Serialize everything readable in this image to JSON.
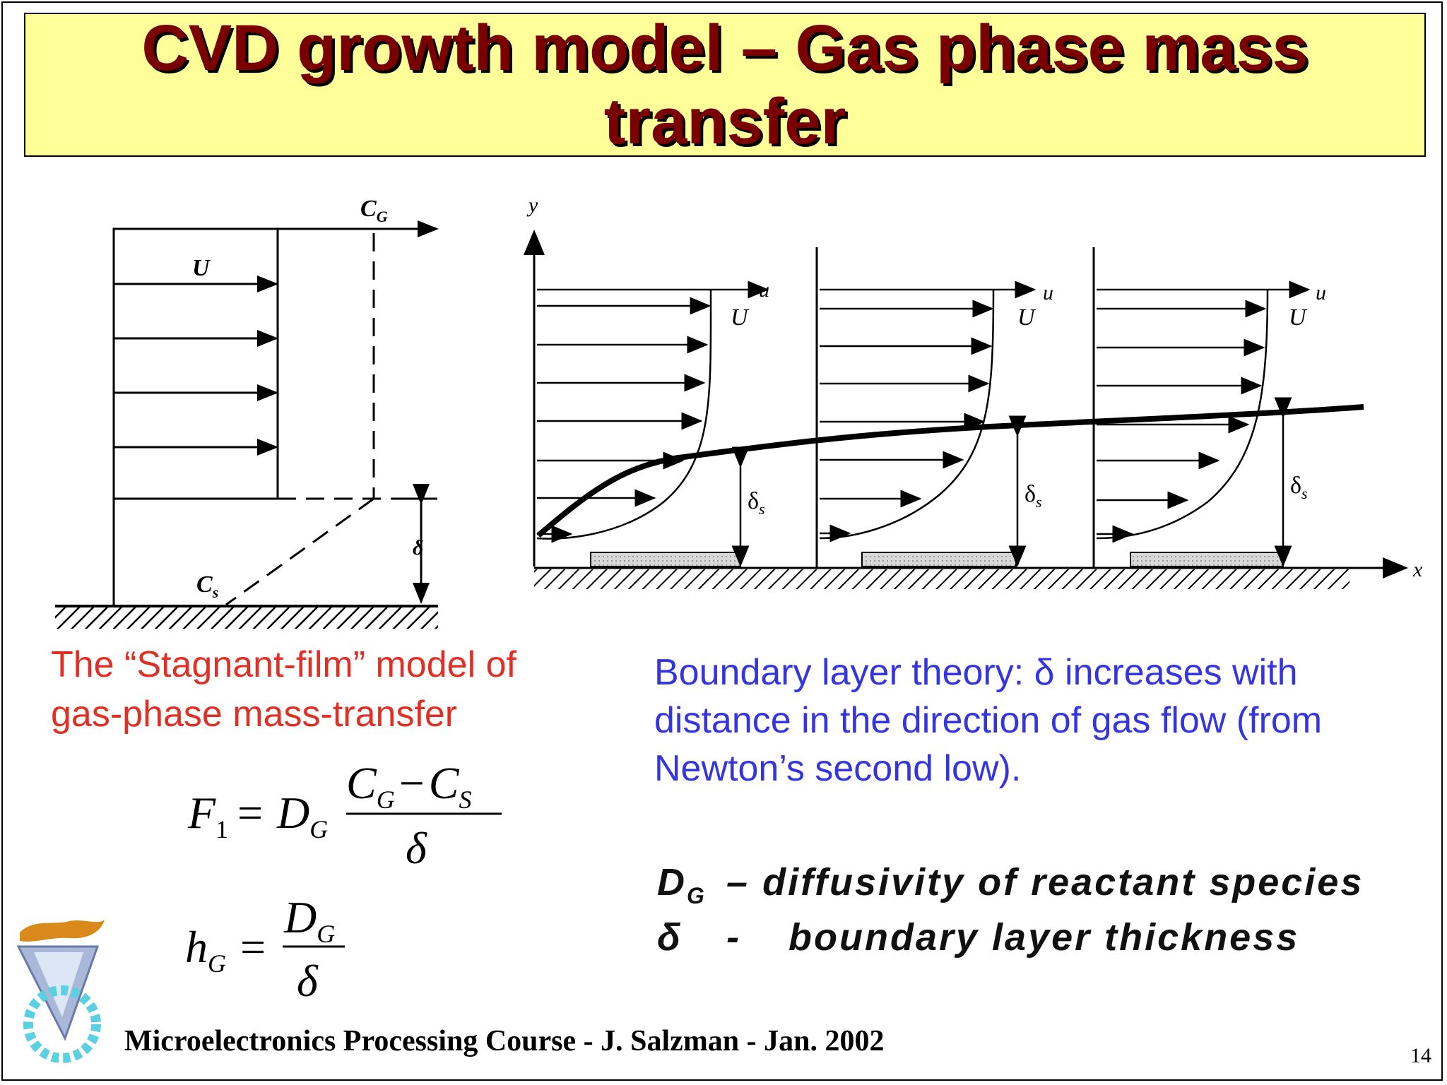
{
  "title": {
    "line1": "CVD growth model – Gas phase mass",
    "line2": "transfer"
  },
  "left_diagram": {
    "labels": {
      "cg": "C",
      "cg_sub": "G",
      "u": "U",
      "cs": "C",
      "cs_sub": "s",
      "delta": "δ"
    }
  },
  "right_diagram": {
    "labels": {
      "y": "y",
      "x": "x",
      "u": "u",
      "U": "U",
      "delta_s": "δ",
      "delta_s_sub": "s"
    }
  },
  "captions": {
    "stagnant_film": "The “Stagnant-film” model of gas-phase mass-transfer",
    "boundary_layer": "Boundary layer theory: δ increases with distance in the direction of gas flow (from Newton’s second low)."
  },
  "equations": {
    "flux": {
      "lhs": "F",
      "lhs_sub": "1",
      "coef": "D",
      "coef_sub": "G",
      "num": "C",
      "num_sub1": "G",
      "minus": "−",
      "num2": "C",
      "num_sub2": "S",
      "den": "δ"
    },
    "hg": {
      "lhs": "h",
      "lhs_sub": "G",
      "num": "D",
      "num_sub": "G",
      "den": "δ"
    }
  },
  "definitions": [
    {
      "symbol": "D",
      "symbol_sub": "G",
      "separator": "–",
      "text": "diffusivity of reactant species"
    },
    {
      "symbol": "δ",
      "symbol_sub": "",
      "separator": "-",
      "text": "boundary layer thickness"
    }
  ],
  "footer": "Microelectronics Processing Course - J. Salzman - Jan. 2002",
  "page_number": "14",
  "colors": {
    "title_bg": "#ffff99",
    "title_text": "#7a0000",
    "red_caption": "#e03025",
    "blue_caption": "#3535e0"
  }
}
